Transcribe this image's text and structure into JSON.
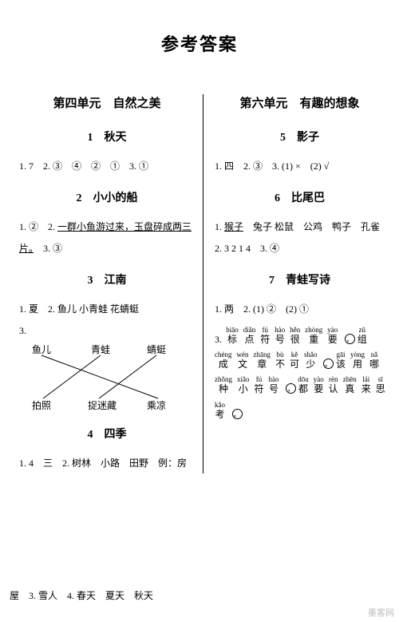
{
  "pageTitle": "参考答案",
  "watermark": "墨客网",
  "left": {
    "unitTitle": "第四单元　自然之美",
    "l1": {
      "title": "1　秋天",
      "a": "1. 7　2. ③　④　②　①　3. ①"
    },
    "l2": {
      "title": "2　小小的船",
      "a1": "1. ②　2. ",
      "a1u": "一群小鱼游过来，玉盘碎成两三",
      "a2u": "片。",
      "a2": "　3. ③"
    },
    "l3": {
      "title": "3　江南",
      "a": "1. 夏　2. 鱼儿 小青蛙 花蜻蜓",
      "topItems": [
        "鱼儿",
        "青蛙",
        "蜻蜓"
      ],
      "botItems": [
        "拍照",
        "捉迷藏",
        "乘凉"
      ],
      "topX": [
        16,
        90,
        160
      ],
      "botX": [
        16,
        86,
        160
      ],
      "lines": [
        [
          0,
          2
        ],
        [
          1,
          0
        ],
        [
          2,
          1
        ]
      ],
      "q3": "3."
    },
    "l4": {
      "title": "4　四季",
      "a": "1. 4　三　2. 树林　小路　田野　例：房",
      "b": "屋　3. 雪人　4. 春天　夏天　秋天"
    }
  },
  "right": {
    "unitTitle": "第六单元　有趣的想象",
    "l5": {
      "title": "5　影子",
      "a": "1. 四　2. ③　3. (1) ×　(2) √"
    },
    "l6": {
      "title": "6　比尾巴",
      "a1": "1. ",
      "a1u": "猴子",
      "a1b": "　兔子 松鼠　公鸡　鸭子　孔雀",
      "a2": "2. 3 2 1 4　3. ④"
    },
    "l7": {
      "title": "7　青蛙写诗",
      "a": "1. 两　2. (1) ②　(2) ①",
      "pin": [
        {
          "py": "",
          "hz": "3."
        },
        {
          "py": "biāo",
          "hz": "标"
        },
        {
          "py": "diǎn",
          "hz": "点"
        },
        {
          "py": "fú",
          "hz": "符"
        },
        {
          "py": "hào",
          "hz": "号"
        },
        {
          "py": "hěn",
          "hz": "很"
        },
        {
          "py": "zhòng",
          "hz": "重"
        },
        {
          "py": "yào",
          "hz": "要"
        },
        {
          "py": "",
          "hz": "，"
        },
        {
          "py": "zǔ",
          "hz": "组"
        }
      ],
      "pin2": [
        {
          "py": "chéng",
          "hz": "成"
        },
        {
          "py": "wén",
          "hz": "文"
        },
        {
          "py": "zhāng",
          "hz": "章"
        },
        {
          "py": "bù",
          "hz": "不"
        },
        {
          "py": "kě",
          "hz": "可"
        },
        {
          "py": "shǎo",
          "hz": "少"
        },
        {
          "py": "",
          "hz": "。"
        },
        {
          "py": "gāi",
          "hz": "该"
        },
        {
          "py": "yòng",
          "hz": "用"
        },
        {
          "py": "nǎ",
          "hz": "哪"
        }
      ],
      "pin3": [
        {
          "py": "zhǒng",
          "hz": "种"
        },
        {
          "py": "xiǎo",
          "hz": "小"
        },
        {
          "py": "fú",
          "hz": "符"
        },
        {
          "py": "hào",
          "hz": "号"
        },
        {
          "py": "",
          "hz": "，"
        },
        {
          "py": "dōu",
          "hz": "都"
        },
        {
          "py": "yào",
          "hz": "要"
        },
        {
          "py": "rèn",
          "hz": "认"
        },
        {
          "py": "zhēn",
          "hz": "真"
        },
        {
          "py": "lái",
          "hz": "来"
        },
        {
          "py": "sī",
          "hz": "思"
        }
      ],
      "pin4": [
        {
          "py": "kǎo",
          "hz": "考"
        },
        {
          "py": "",
          "hz": "。"
        }
      ]
    }
  }
}
